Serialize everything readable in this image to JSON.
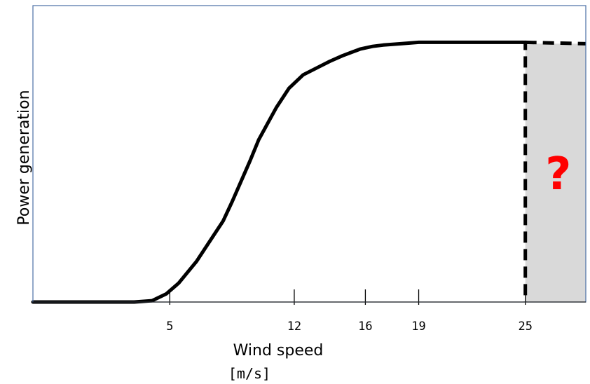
{
  "chart_data": {
    "type": "line",
    "xlabel": "Wind speed",
    "xunit": "[m/s]",
    "ylabel": "Power generation",
    "xlim": [
      -2.7,
      28.4
    ],
    "ylim": [
      0,
      1.0
    ],
    "xticks": [
      5,
      12,
      16,
      19,
      25
    ],
    "yticks_visible": false,
    "grid": false,
    "series": [
      {
        "style": "solid",
        "color": "#000000",
        "x": [
          -2.7,
          0.5,
          3.0,
          4.0,
          4.8,
          5.5,
          6.5,
          7.5,
          8.0,
          8.5,
          9.5,
          10.0,
          10.5,
          11.0,
          11.7,
          12.5,
          13.4,
          14.0,
          14.7,
          15.3,
          15.7,
          16.4,
          17.0,
          18.0,
          19.0,
          20.5,
          22.0,
          23.5,
          24.2,
          24.8
        ],
        "y": [
          0.0,
          0.0,
          0.0,
          0.005,
          0.03,
          0.07,
          0.15,
          0.25,
          0.3,
          0.37,
          0.52,
          0.6,
          0.66,
          0.72,
          0.79,
          0.84,
          0.87,
          0.89,
          0.91,
          0.925,
          0.935,
          0.945,
          0.95,
          0.955,
          0.96,
          0.96,
          0.96,
          0.96,
          0.96,
          0.96
        ]
      },
      {
        "style": "dashed",
        "color": "#000000",
        "x": [
          24.8,
          25.0,
          25.0,
          28.4
        ],
        "y": [
          0.96,
          0.96,
          0.0,
          0.955
        ]
      }
    ],
    "annotations": [
      {
        "text": "?",
        "color": "#ff0000",
        "region_x": [
          25,
          28.4
        ]
      }
    ],
    "unknown_region_color": "#d9d9d9",
    "border_color": "#4a6fa5"
  }
}
